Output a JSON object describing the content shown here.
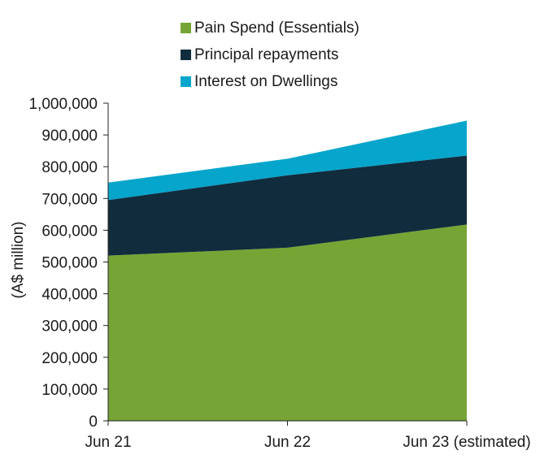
{
  "chart_data": {
    "type": "area",
    "stacked": true,
    "categories": [
      "Jun 21",
      "Jun 22",
      "Jun 23 (estimated)"
    ],
    "series": [
      {
        "name": "Pain Spend (Essentials)",
        "color": "#76a535",
        "values": [
          520000,
          545000,
          618000
        ]
      },
      {
        "name": "Principal repayments",
        "color": "#112c3d",
        "values": [
          175000,
          228000,
          217000
        ]
      },
      {
        "name": "Interest on Dwellings",
        "color": "#06a5cc",
        "values": [
          55000,
          52000,
          110000
        ]
      }
    ],
    "ylabel": "(A$ million)",
    "xlabel": "",
    "ylim": [
      0,
      1000000
    ],
    "yticks": [
      0,
      100000,
      200000,
      300000,
      400000,
      500000,
      600000,
      700000,
      800000,
      900000,
      1000000
    ],
    "ytick_labels": [
      "0",
      "100,000",
      "200,000",
      "300,000",
      "400,000",
      "500,000",
      "600,000",
      "700,000",
      "800,000",
      "900,000",
      "1,000,000"
    ],
    "legend_position": "top"
  }
}
